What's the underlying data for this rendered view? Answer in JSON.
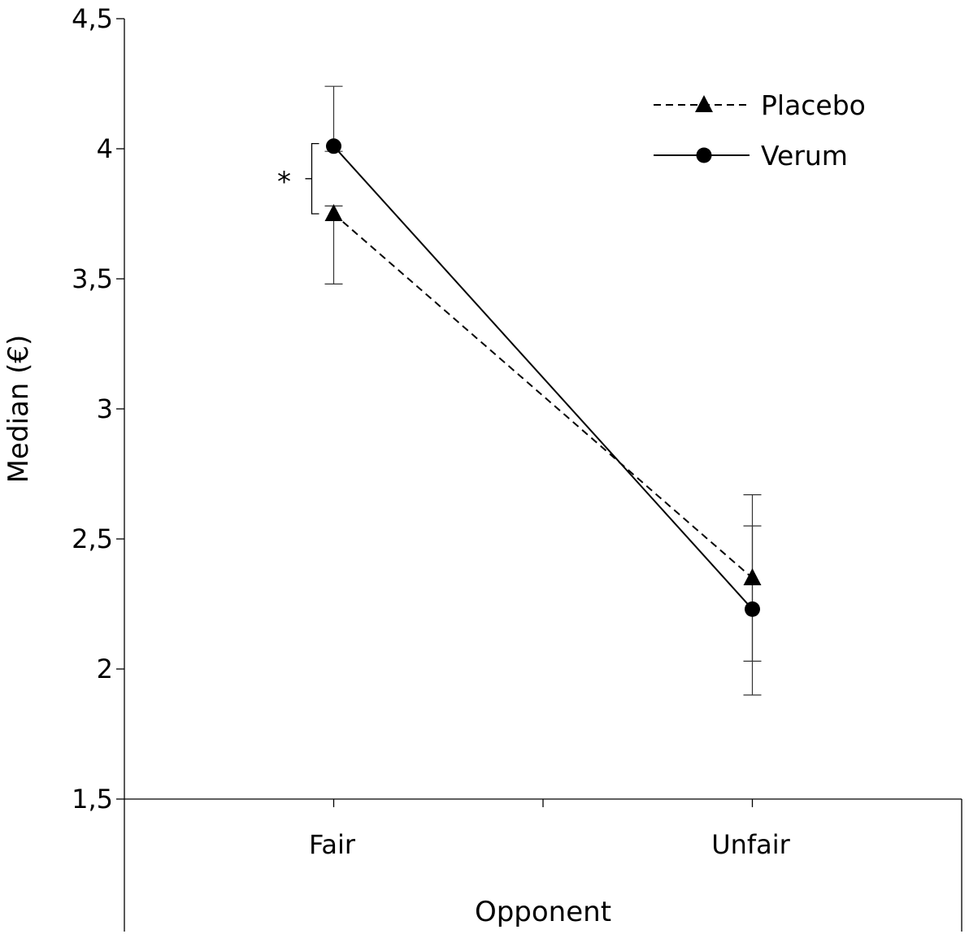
{
  "chart_data": {
    "type": "line",
    "title": "",
    "xlabel": "Opponent",
    "ylabel": "Median (€)",
    "categories": [
      "Fair",
      "Unfair"
    ],
    "ylim": [
      1.5,
      4.5
    ],
    "yticks": [
      1.5,
      2,
      2.5,
      3,
      3.5,
      4,
      4.5
    ],
    "ytick_labels": [
      "1,5",
      "2",
      "2,5",
      "3",
      "3,5",
      "4",
      "4,5"
    ],
    "grid": false,
    "legend_position": "top-right",
    "series": [
      {
        "name": "Placebo",
        "marker": "triangle",
        "line_style": "dashed",
        "values": [
          3.75,
          2.35
        ],
        "error_low": [
          3.48,
          2.03
        ],
        "error_high": [
          3.78,
          2.55
        ]
      },
      {
        "name": "Verum",
        "marker": "circle",
        "line_style": "solid",
        "values": [
          4.01,
          2.23
        ],
        "error_low": [
          3.99,
          1.9
        ],
        "error_high": [
          4.24,
          2.67
        ]
      }
    ],
    "annotations": [
      {
        "text": "*",
        "category": "Fair",
        "between": [
          3.75,
          4.02
        ]
      }
    ]
  }
}
